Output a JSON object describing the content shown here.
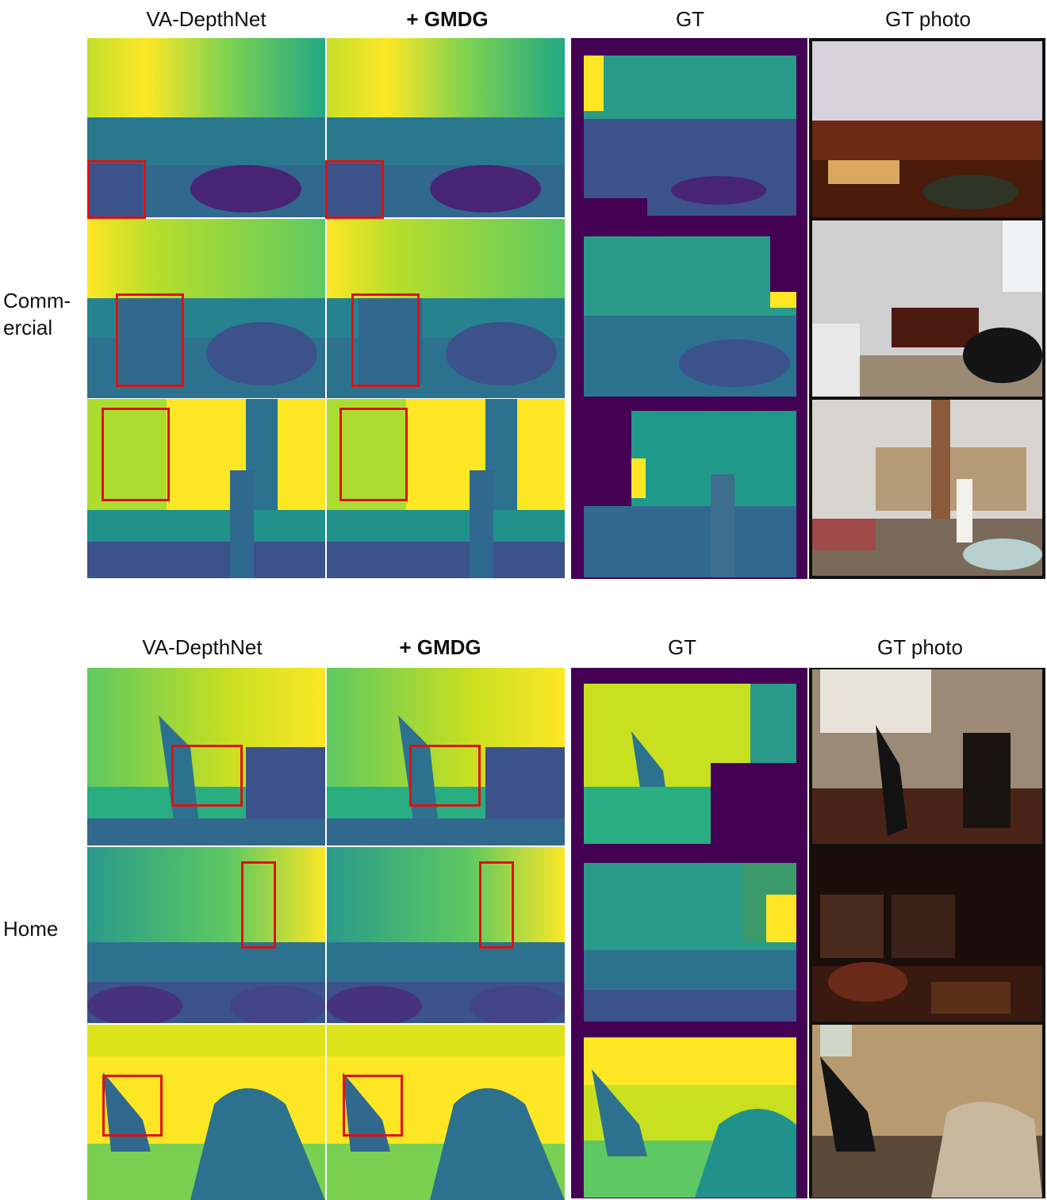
{
  "columns": [
    "VA-DepthNet",
    "+ GMDG",
    "GT",
    "GT photo"
  ],
  "groups": [
    {
      "label": "Comm-\nercial",
      "label_lines": [
        "Comm-",
        "ercial"
      ],
      "rows": 3
    },
    {
      "label": "Home",
      "label_lines": [
        "Home"
      ],
      "rows": 3
    }
  ],
  "colors": {
    "viridis_low": "#440154",
    "viridis_mid": "#21918c",
    "viridis_high": "#fde725",
    "highlight_box": "#e01010",
    "photo_border": "#111111"
  }
}
